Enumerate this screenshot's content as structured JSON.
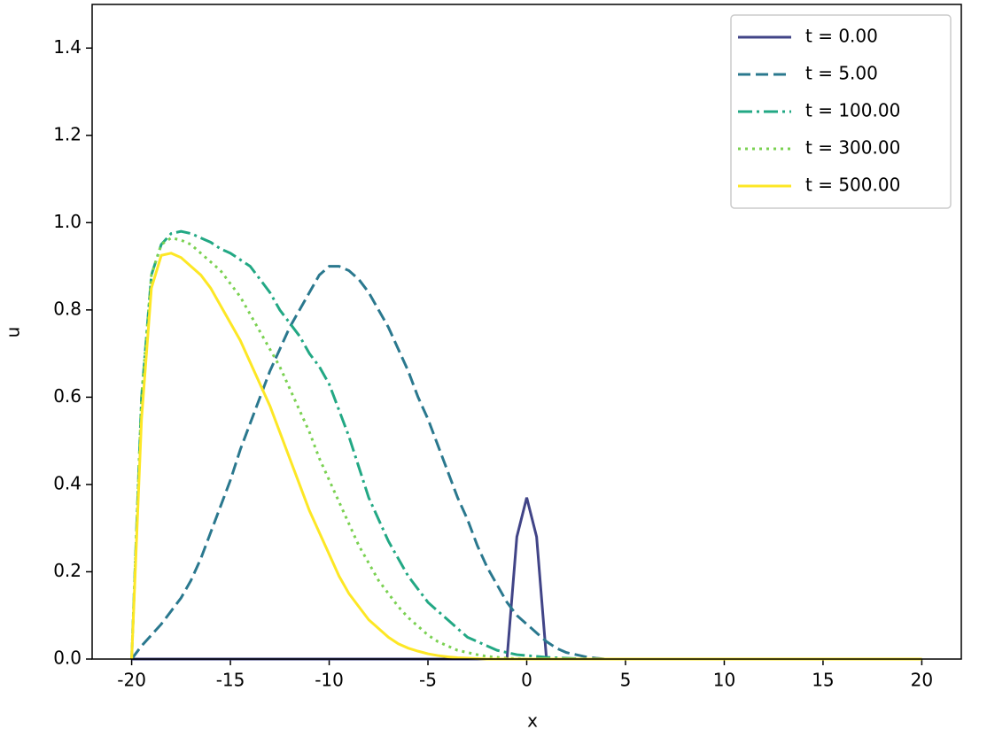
{
  "chart_data": {
    "type": "line",
    "xlabel": "x",
    "ylabel": "u",
    "x": [
      -20,
      -19.5,
      -19,
      -18.5,
      -18,
      -17.5,
      -17,
      -16.5,
      -16,
      -15.5,
      -15,
      -14.5,
      -14,
      -13.5,
      -13,
      -12.5,
      -12,
      -11.5,
      -11,
      -10.5,
      -10,
      -9.5,
      -9,
      -8.5,
      -8,
      -7.5,
      -7,
      -6.5,
      -6,
      -5.5,
      -5,
      -4.5,
      -4,
      -3.5,
      -3,
      -2.5,
      -2,
      -1.5,
      -1,
      -0.5,
      0,
      0.5,
      1,
      1.5,
      2,
      2.5,
      3,
      3.5,
      4,
      4.5,
      5,
      5.5,
      6,
      6.5,
      7,
      7.5,
      8,
      8.5,
      9,
      9.5,
      10,
      10.5,
      11,
      11.5,
      12,
      12.5,
      13,
      13.5,
      14,
      14.5,
      15,
      15.5,
      16,
      16.5,
      17,
      17.5,
      18,
      18.5,
      19,
      19.5,
      20
    ],
    "xlim": [
      -22,
      22
    ],
    "xticks": [
      -20,
      -15,
      -10,
      -5,
      0,
      5,
      10,
      15,
      20
    ],
    "ylim": [
      0,
      1.5
    ],
    "yticks": [
      {
        "value": 0,
        "label": "0.0"
      },
      0.2,
      0.4,
      0.6,
      0.8,
      {
        "value": 1,
        "label": "1.0"
      },
      1.2,
      1.4
    ],
    "legend": "upper right",
    "series": [
      {
        "name": "t = 0.00",
        "color": "#414487",
        "dash": "solid",
        "values": [
          0,
          0,
          0,
          0,
          0,
          0,
          0,
          0,
          0,
          0,
          0,
          0,
          0,
          0,
          0,
          0,
          0,
          0,
          0,
          0,
          0,
          0,
          0,
          0,
          0,
          0,
          0,
          0,
          0,
          0,
          0,
          0,
          0,
          0,
          0,
          0,
          0,
          0,
          0,
          0.28,
          0.37,
          0.28,
          0,
          0,
          0,
          0,
          0,
          0,
          0,
          0,
          0,
          0,
          0,
          0,
          0,
          0,
          0,
          0,
          0,
          0,
          0,
          0,
          0,
          0,
          0,
          0,
          0,
          0,
          0,
          0,
          0,
          0,
          0,
          0,
          0,
          0,
          0,
          0,
          0,
          0,
          0
        ]
      },
      {
        "name": "t = 5.00",
        "color": "#2a788e",
        "dash": "dashed",
        "values": [
          0,
          0.03,
          0.055,
          0.08,
          0.11,
          0.14,
          0.18,
          0.23,
          0.29,
          0.35,
          0.41,
          0.48,
          0.54,
          0.6,
          0.66,
          0.71,
          0.76,
          0.8,
          0.84,
          0.88,
          0.9,
          0.9,
          0.89,
          0.87,
          0.84,
          0.8,
          0.76,
          0.71,
          0.66,
          0.6,
          0.55,
          0.49,
          0.43,
          0.37,
          0.32,
          0.26,
          0.21,
          0.17,
          0.13,
          0.1,
          0.08,
          0.06,
          0.04,
          0.025,
          0.015,
          0.01,
          0.005,
          0.002,
          0,
          0,
          0,
          0,
          0,
          0,
          0,
          0,
          0,
          0,
          0,
          0,
          0,
          0,
          0,
          0,
          0,
          0,
          0,
          0,
          0,
          0,
          0,
          0,
          0,
          0,
          0,
          0,
          0,
          0,
          0,
          0,
          0
        ]
      },
      {
        "name": "t = 100.00",
        "color": "#22a884",
        "dash": "dashdot",
        "values": [
          0,
          0.6,
          0.88,
          0.95,
          0.975,
          0.98,
          0.975,
          0.965,
          0.955,
          0.94,
          0.93,
          0.915,
          0.9,
          0.87,
          0.84,
          0.8,
          0.77,
          0.74,
          0.7,
          0.67,
          0.63,
          0.57,
          0.51,
          0.44,
          0.37,
          0.32,
          0.27,
          0.23,
          0.19,
          0.16,
          0.13,
          0.11,
          0.09,
          0.07,
          0.05,
          0.04,
          0.03,
          0.02,
          0.015,
          0.01,
          0.008,
          0.006,
          0.004,
          0.003,
          0.002,
          0.001,
          0,
          0,
          0,
          0,
          0,
          0,
          0,
          0,
          0,
          0,
          0,
          0,
          0,
          0,
          0,
          0,
          0,
          0,
          0,
          0,
          0,
          0,
          0,
          0,
          0,
          0,
          0,
          0,
          0,
          0,
          0,
          0,
          0,
          0,
          0
        ]
      },
      {
        "name": "t = 300.00",
        "color": "#7ad151",
        "dash": "dotted",
        "values": [
          0,
          0.6,
          0.88,
          0.95,
          0.965,
          0.96,
          0.95,
          0.93,
          0.91,
          0.89,
          0.86,
          0.83,
          0.79,
          0.75,
          0.71,
          0.67,
          0.62,
          0.57,
          0.52,
          0.46,
          0.41,
          0.36,
          0.31,
          0.26,
          0.22,
          0.18,
          0.15,
          0.12,
          0.095,
          0.075,
          0.055,
          0.04,
          0.03,
          0.02,
          0.015,
          0.01,
          0.006,
          0.004,
          0.002,
          0.001,
          0,
          0,
          0,
          0,
          0,
          0,
          0,
          0,
          0,
          0,
          0,
          0,
          0,
          0,
          0,
          0,
          0,
          0,
          0,
          0,
          0,
          0,
          0,
          0,
          0,
          0,
          0,
          0,
          0,
          0,
          0,
          0,
          0,
          0,
          0,
          0,
          0,
          0,
          0,
          0,
          0
        ]
      },
      {
        "name": "t = 500.00",
        "color": "#fde725",
        "dash": "solid",
        "values": [
          0,
          0.55,
          0.85,
          0.925,
          0.93,
          0.92,
          0.9,
          0.88,
          0.85,
          0.81,
          0.77,
          0.73,
          0.68,
          0.63,
          0.58,
          0.52,
          0.46,
          0.4,
          0.34,
          0.29,
          0.24,
          0.19,
          0.15,
          0.12,
          0.09,
          0.07,
          0.05,
          0.035,
          0.025,
          0.018,
          0.012,
          0.008,
          0.005,
          0.003,
          0.002,
          0.001,
          0,
          0,
          0,
          0,
          0,
          0,
          0,
          0,
          0,
          0,
          0,
          0,
          0,
          0,
          0,
          0,
          0,
          0,
          0,
          0,
          0,
          0,
          0,
          0,
          0,
          0,
          0,
          0,
          0,
          0,
          0,
          0,
          0,
          0,
          0,
          0,
          0,
          0,
          0,
          0,
          0,
          0,
          0,
          0,
          0
        ]
      }
    ]
  }
}
